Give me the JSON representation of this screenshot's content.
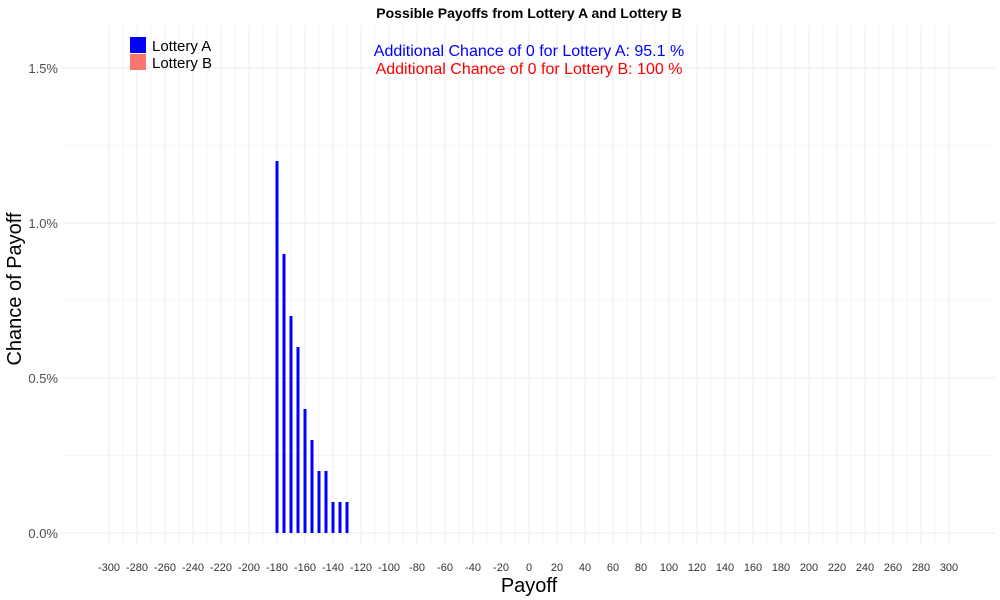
{
  "chart_data": {
    "type": "bar",
    "title": "Possible Payoffs from Lottery A and Lottery B",
    "xlabel": "Payoff",
    "ylabel": "Chance of Payoff",
    "xlim": [
      -310,
      310
    ],
    "ylim": [
      0,
      1.6
    ],
    "x_ticks": [
      -300,
      -280,
      -260,
      -240,
      -220,
      -200,
      -180,
      -160,
      -140,
      -120,
      -100,
      -80,
      -60,
      -40,
      -20,
      0,
      20,
      40,
      60,
      80,
      100,
      120,
      140,
      160,
      180,
      200,
      220,
      240,
      260,
      280,
      300
    ],
    "x_tick_labels": [
      "-300",
      "-280",
      "-260",
      "-240",
      "-220",
      "-200",
      "-180",
      "-160",
      "-140",
      "-120",
      "-100",
      "-80",
      "-60",
      "-40",
      "-20",
      "0",
      "20",
      "40",
      "60",
      "80",
      "100",
      "120",
      "140",
      "160",
      "180",
      "200",
      "220",
      "240",
      "260",
      "280",
      "300"
    ],
    "y_ticks": [
      0,
      0.5,
      1.0,
      1.5
    ],
    "y_tick_labels": [
      "0.0%",
      "0.5%",
      "1.0%",
      "1.5%"
    ],
    "grid": true,
    "legend_position": "top-left",
    "legend": [
      {
        "label": "Lottery A",
        "color": "#0000ff"
      },
      {
        "label": "Lottery B",
        "color": "#f8766d"
      }
    ],
    "annotations": [
      {
        "text": "Additional Chance of 0 for Lottery A:  95.1 %",
        "color": "#0000ff"
      },
      {
        "text": "Additional Chance of 0 for Lottery B:  100 %",
        "color": "#ff0000"
      }
    ],
    "series": [
      {
        "name": "Lottery A",
        "color": "#0000ff",
        "x": [
          -180,
          -175,
          -170,
          -165,
          -160,
          -155,
          -150,
          -145,
          -140,
          -135,
          -130
        ],
        "values": [
          1.2,
          0.9,
          0.7,
          0.6,
          0.4,
          0.3,
          0.2,
          0.2,
          0.1,
          0.1,
          0.1
        ]
      },
      {
        "name": "Lottery B",
        "color": "#f8766d",
        "x": [],
        "values": []
      }
    ]
  }
}
